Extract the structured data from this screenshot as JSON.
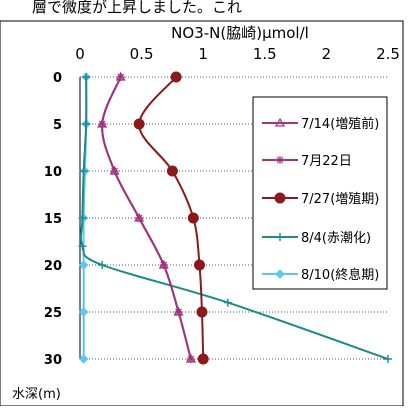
{
  "header_text": "層で微度が上昇しました。これ",
  "chart_data": {
    "type": "line",
    "title": "NO3-N(脇崎)μmol/l",
    "xlabel": "",
    "ylabel": "水深(m)",
    "xlim": [
      0,
      2.5
    ],
    "ylim": [
      0,
      30
    ],
    "x_axis_position": "top",
    "y_inverted": true,
    "x_ticks": [
      "0",
      "0.5",
      "1",
      "1.5",
      "2",
      "2.5"
    ],
    "y_ticks": [
      "0",
      "5",
      "10",
      "15",
      "20",
      "25",
      "30"
    ],
    "grid": "horizontal-dotted",
    "legend_position": "right",
    "series": [
      {
        "name": "7/14(増殖前)",
        "color": "#a0357e",
        "marker": "triangle",
        "points": [
          [
            0.33,
            0
          ],
          [
            0.18,
            5
          ],
          [
            0.28,
            10
          ],
          [
            0.48,
            15
          ],
          [
            0.68,
            20
          ],
          [
            0.8,
            25
          ],
          [
            0.9,
            30
          ]
        ]
      },
      {
        "name": "7月22日",
        "color": "#a0357e",
        "marker": "asterisk",
        "points": [
          [
            0.33,
            0
          ],
          [
            0.18,
            5
          ],
          [
            0.28,
            10
          ],
          [
            0.48,
            15
          ],
          [
            0.68,
            20
          ],
          [
            0.8,
            25
          ],
          [
            0.9,
            30
          ]
        ]
      },
      {
        "name": "7/27(増殖期)",
        "color": "#8b1a1a",
        "marker": "circle",
        "points": [
          [
            0.78,
            0
          ],
          [
            0.48,
            5
          ],
          [
            0.75,
            10
          ],
          [
            0.92,
            15
          ],
          [
            0.97,
            20
          ],
          [
            0.99,
            25
          ],
          [
            1.0,
            30
          ]
        ]
      },
      {
        "name": "8/4(赤潮化)",
        "color": "#1b8a8a",
        "marker": "plus",
        "points": [
          [
            0.05,
            0
          ],
          [
            0.05,
            5
          ],
          [
            0.03,
            10
          ],
          [
            0.02,
            15
          ],
          [
            0.02,
            18
          ],
          [
            0.18,
            20
          ],
          [
            1.2,
            24
          ],
          [
            2.5,
            30
          ]
        ]
      },
      {
        "name": "8/10(終息期)",
        "color": "#5bc8f0",
        "marker": "diamond",
        "points": [
          [
            0.05,
            0
          ],
          [
            0.05,
            5
          ],
          [
            0.04,
            10
          ],
          [
            0.03,
            15
          ],
          [
            0.03,
            20
          ],
          [
            0.03,
            25
          ],
          [
            0.03,
            30
          ]
        ]
      }
    ]
  }
}
